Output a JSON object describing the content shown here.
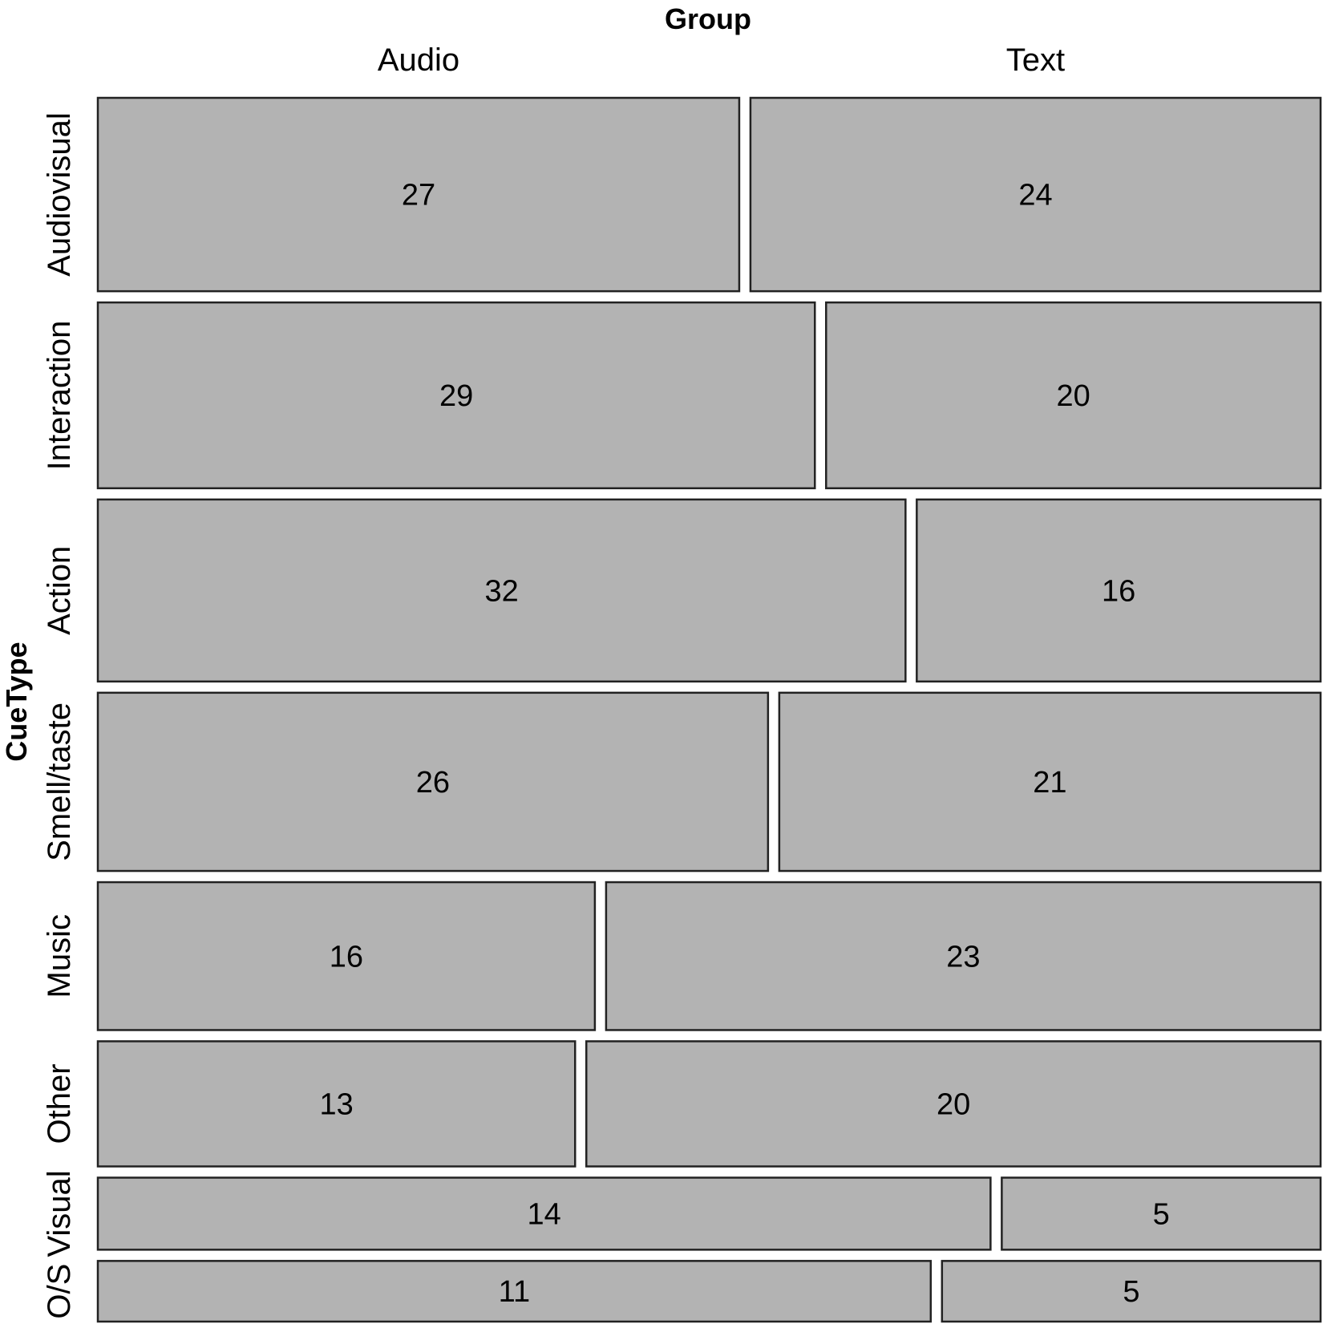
{
  "chart_data": {
    "type": "mosaic",
    "x_var": "Group",
    "y_var": "CueType",
    "columns": [
      "Audio",
      "Text"
    ],
    "rows": [
      "Audiovisual",
      "Interaction",
      "Action",
      "Smell/taste",
      "Music",
      "Other",
      "Visual",
      "O/S"
    ],
    "counts": [
      [
        27,
        24
      ],
      [
        29,
        20
      ],
      [
        32,
        16
      ],
      [
        26,
        21
      ],
      [
        16,
        23
      ],
      [
        13,
        20
      ],
      [
        14,
        5
      ],
      [
        11,
        5
      ]
    ],
    "fill_color": "#b3b3b3",
    "legend": "none",
    "grid": false
  }
}
